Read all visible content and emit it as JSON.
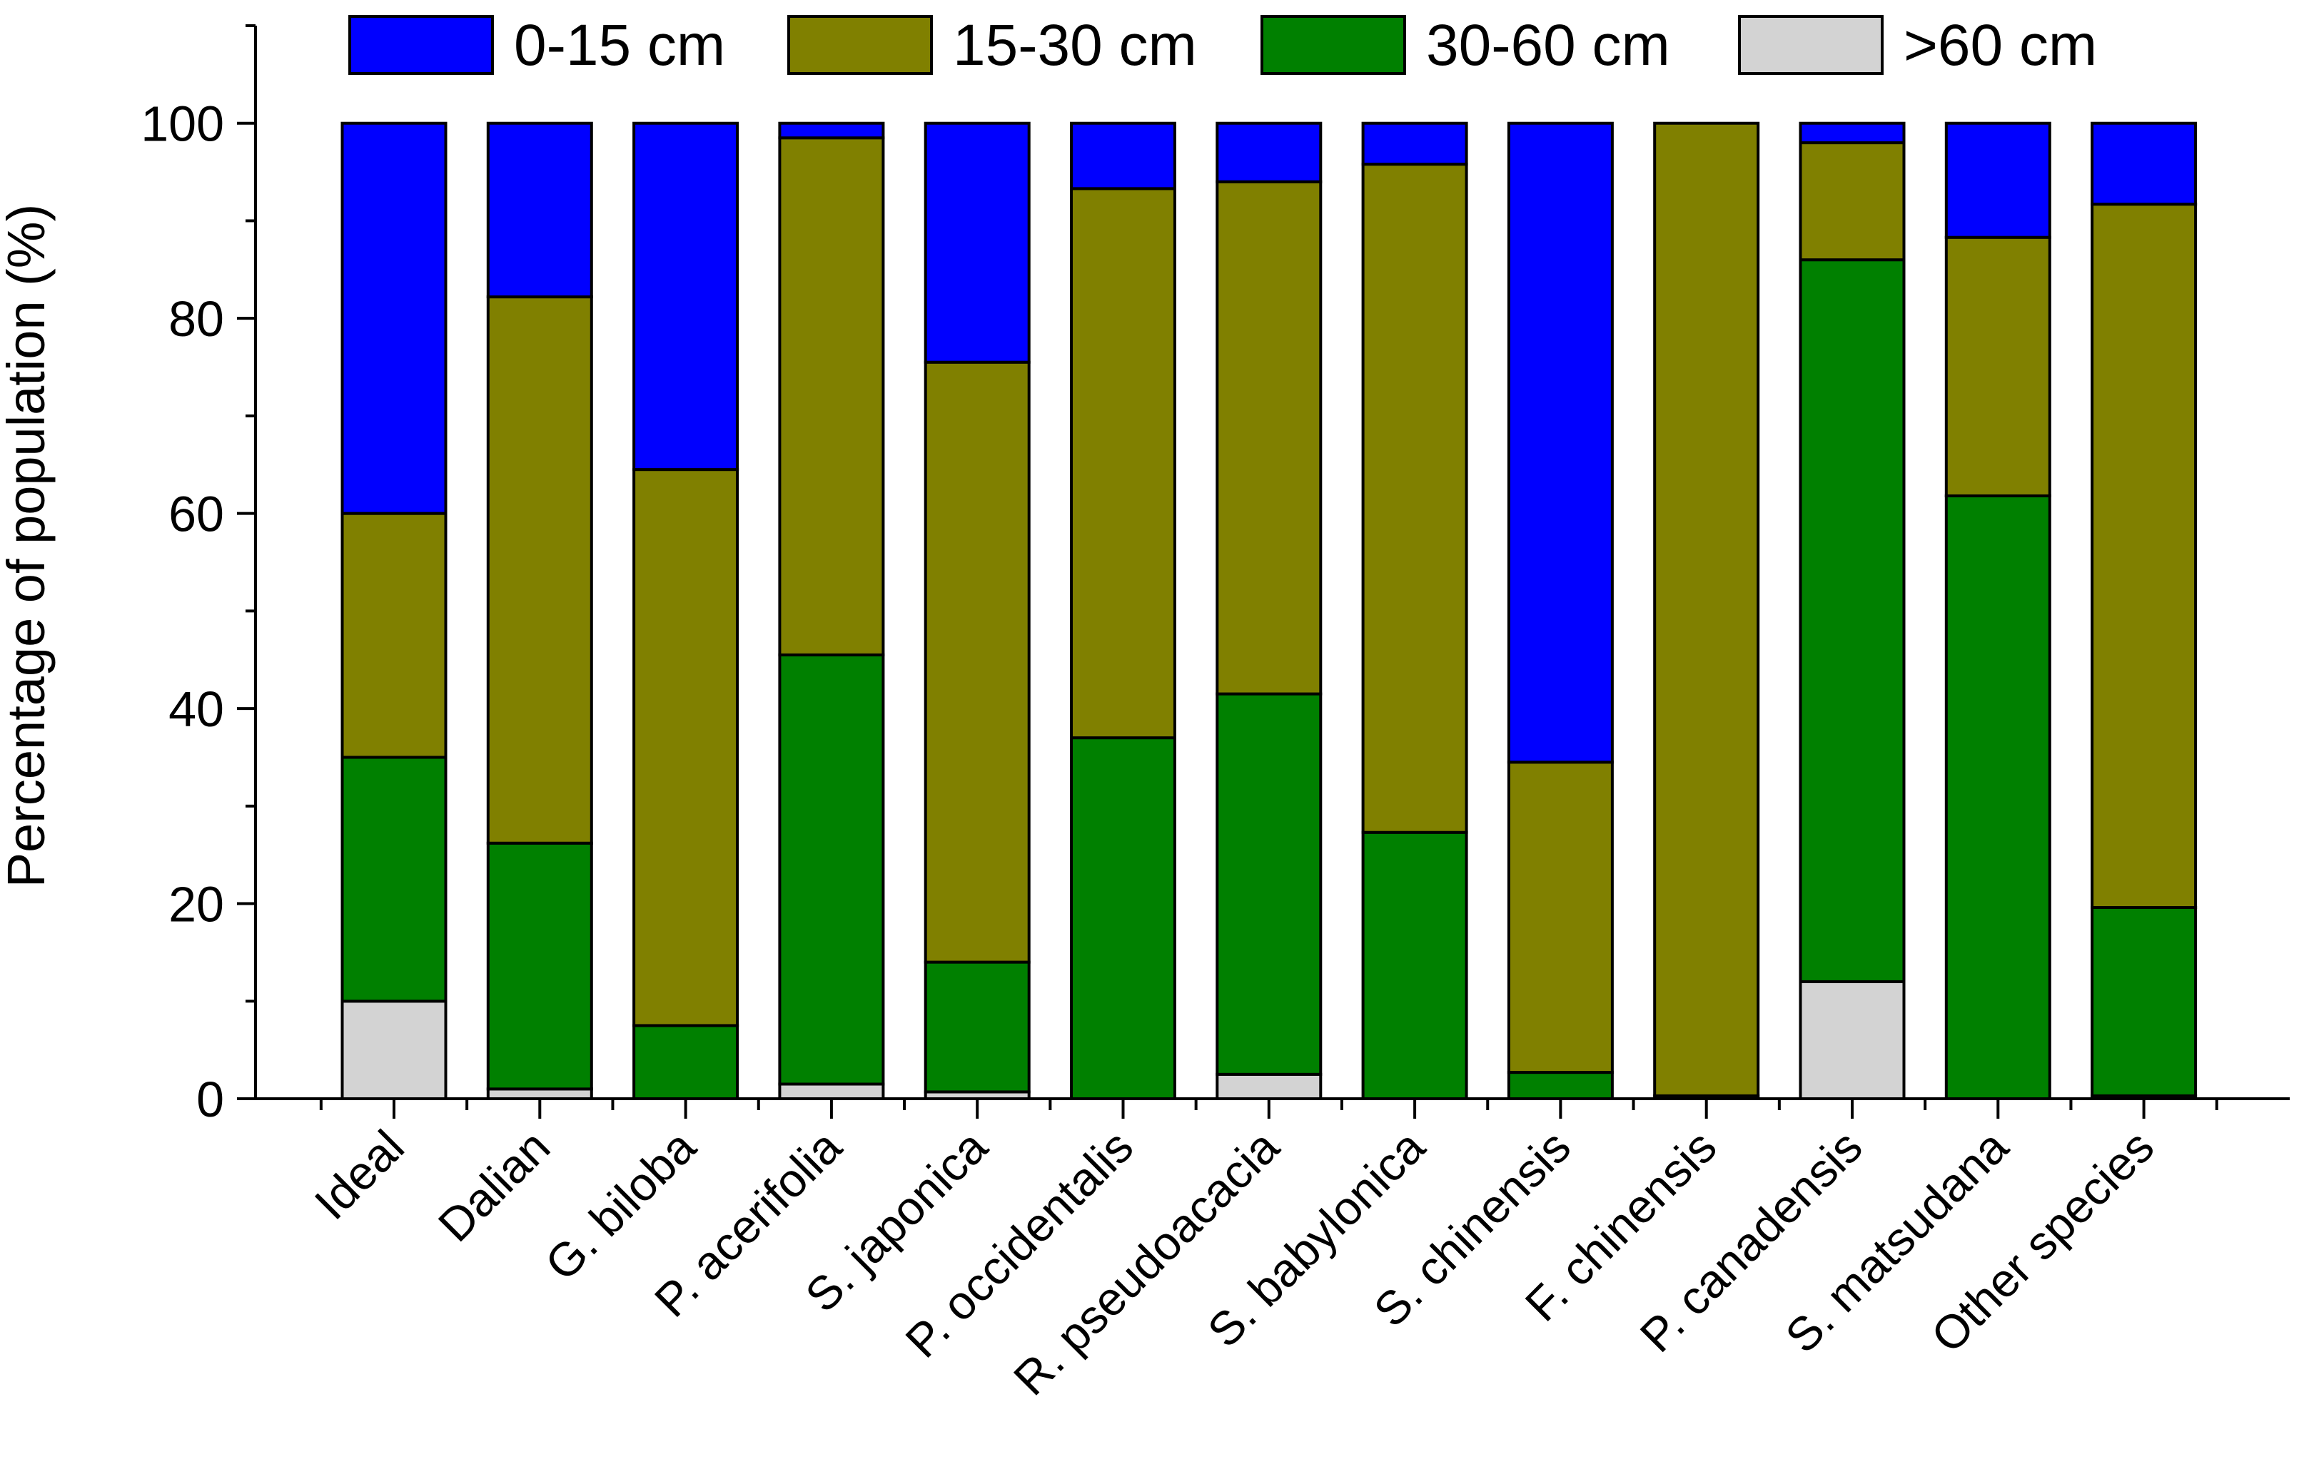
{
  "chart_data": {
    "type": "bar",
    "stacked": true,
    "title": "",
    "xlabel": "",
    "ylabel": "Percentage of population (%)",
    "ylim": [
      0,
      110
    ],
    "yticks": [
      0,
      20,
      40,
      60,
      80,
      100
    ],
    "legend_position": "top",
    "categories": [
      "Ideal",
      "Dalian",
      "G. biloba",
      "P. acerifolia",
      "S. japonica",
      "P. occidentalis",
      "R. pseudoacacia",
      "S. babylonica",
      "S. chinensis",
      "F. chinensis",
      "P. canadensis",
      "S. matsudana",
      "Other species"
    ],
    "series": [
      {
        "name": ">60 cm",
        "color": "#d3d3d3",
        "values": [
          10,
          1,
          0,
          1.5,
          0.7,
          0,
          2.5,
          0,
          0,
          0.3,
          12,
          0,
          0.3
        ]
      },
      {
        "name": "30-60 cm",
        "color": "#008000",
        "values": [
          25,
          25.2,
          7.5,
          44,
          13.3,
          37,
          39,
          27.3,
          2.7,
          0,
          74,
          61.8,
          19.3
        ]
      },
      {
        "name": "15-30 cm",
        "color": "#808000",
        "values": [
          25,
          56,
          57,
          53,
          61.5,
          56.3,
          52.5,
          68.5,
          31.8,
          99.7,
          12,
          26.5,
          72.1
        ]
      },
      {
        "name": "0-15 cm",
        "color": "#0000ff",
        "values": [
          40,
          17.8,
          35.5,
          1.5,
          24.5,
          6.7,
          6,
          4.2,
          65.5,
          0,
          2,
          11.7,
          8.3
        ]
      }
    ],
    "legend_order": [
      "0-15 cm",
      "15-30 cm",
      "30-60 cm",
      ">60 cm"
    ]
  }
}
